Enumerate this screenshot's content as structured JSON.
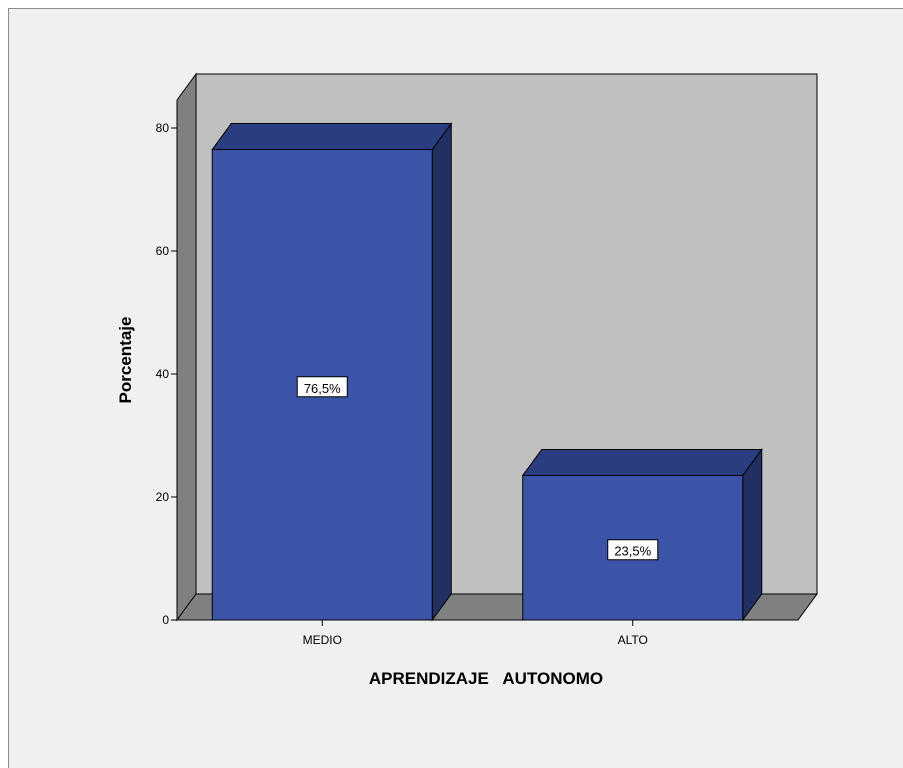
{
  "chart_data": {
    "type": "bar",
    "categories": [
      "MEDIO",
      "ALTO"
    ],
    "values": [
      76.5,
      23.5
    ],
    "data_labels": [
      "76,5%",
      "23,5%"
    ],
    "xlabel": "APRENDIZAJE   AUTONOMO",
    "ylabel": "Porcentaje",
    "ylim": [
      0,
      80
    ],
    "yticks": [
      0,
      20,
      40,
      60,
      80
    ],
    "style": "3d",
    "grid": false,
    "colors": {
      "bar_front": "#3c54a8",
      "bar_top": "#2a3d80",
      "bar_side": "#222f63",
      "plot_back": "#c0c0c0",
      "plot_wall": "#808080",
      "plot_floor": "#808080",
      "frame_bg": "#f0f0f0"
    }
  }
}
